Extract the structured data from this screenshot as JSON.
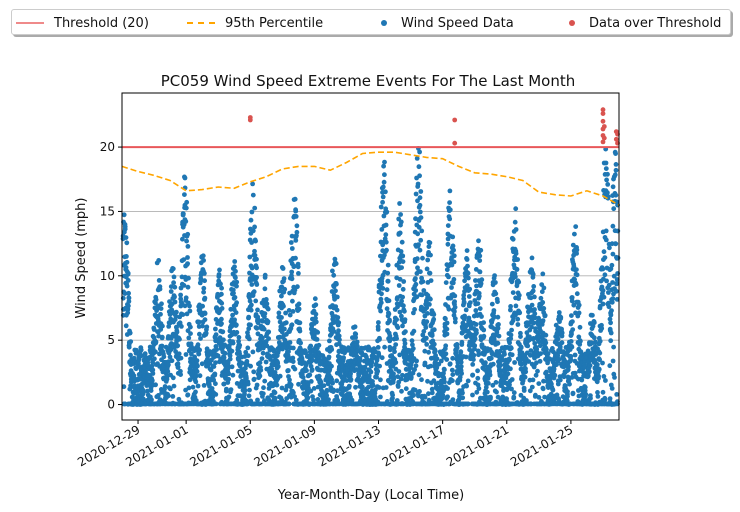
{
  "chart_data": {
    "type": "scatter",
    "title": "PC059 Wind Speed Extreme Events For The Last Month",
    "xlabel": "Year-Month-Day (Local Time)",
    "ylabel": "Wind Speed (mph)",
    "x_range": [
      "2020-12-28T00:00",
      "2021-01-28T00:00"
    ],
    "ylim": [
      -1.2,
      24.2
    ],
    "yticks": [
      0,
      5,
      10,
      15,
      20
    ],
    "xticks": [
      "2020-12-29",
      "2021-01-01",
      "2021-01-05",
      "2021-01-09",
      "2021-01-13",
      "2021-01-17",
      "2021-01-21",
      "2021-01-25"
    ],
    "grid": "horizontal",
    "legend_placement": "top",
    "threshold": 20,
    "series": [
      {
        "name": "Threshold (20)",
        "kind": "line",
        "color": "#e8575a"
      },
      {
        "name": "95th Percentile",
        "kind": "dashed-line",
        "color": "#ffa500",
        "x": [
          "2020-12-28",
          "2020-12-29",
          "2020-12-30",
          "2020-12-31",
          "2021-01-01",
          "2021-01-02",
          "2021-01-03",
          "2021-01-04",
          "2021-01-05",
          "2021-01-06",
          "2021-01-07",
          "2021-01-08",
          "2021-01-09",
          "2021-01-10",
          "2021-01-11",
          "2021-01-12",
          "2021-01-13",
          "2021-01-14",
          "2021-01-15",
          "2021-01-16",
          "2021-01-17",
          "2021-01-18",
          "2021-01-19",
          "2021-01-20",
          "2021-01-21",
          "2021-01-22",
          "2021-01-23",
          "2021-01-24",
          "2021-01-25",
          "2021-01-26",
          "2021-01-27",
          "2021-01-28"
        ],
        "y": [
          18.5,
          18.1,
          17.8,
          17.4,
          16.6,
          16.7,
          16.9,
          16.8,
          17.3,
          17.7,
          18.3,
          18.5,
          18.5,
          18.2,
          18.8,
          19.5,
          19.6,
          19.6,
          19.4,
          19.2,
          19.1,
          18.5,
          18.0,
          17.9,
          17.7,
          17.4,
          16.5,
          16.3,
          16.2,
          16.6,
          16.2,
          15.5
        ]
      },
      {
        "name": "Wind Speed Data",
        "kind": "scatter",
        "color": "#1f77b4",
        "bursts": [
          {
            "t": "2020-12-28T04:00",
            "peak": 14.5
          },
          {
            "t": "2020-12-29T12:00",
            "peak": 4.0
          },
          {
            "t": "2020-12-30T06:00",
            "peak": 11.0
          },
          {
            "t": "2020-12-31T04:00",
            "peak": 10.5
          },
          {
            "t": "2020-12-31T22:00",
            "peak": 17.0
          },
          {
            "t": "2021-01-02T00:00",
            "peak": 11.5
          },
          {
            "t": "2021-01-03T02:00",
            "peak": 10.0
          },
          {
            "t": "2021-01-04T00:00",
            "peak": 11.0
          },
          {
            "t": "2021-01-05T04:00",
            "peak": 16.5
          },
          {
            "t": "2021-01-05T22:00",
            "peak": 10.0
          },
          {
            "t": "2021-01-07T00:00",
            "peak": 10.5
          },
          {
            "t": "2021-01-07T18:00",
            "peak": 16.5
          },
          {
            "t": "2021-01-09T00:00",
            "peak": 8.5
          },
          {
            "t": "2021-01-10T06:00",
            "peak": 11.5
          },
          {
            "t": "2021-01-11T12:00",
            "peak": 6.0
          },
          {
            "t": "2021-01-13T08:00",
            "peak": 18.5
          },
          {
            "t": "2021-01-14T08:00",
            "peak": 15.0
          },
          {
            "t": "2021-01-15T12:00",
            "peak": 19.5
          },
          {
            "t": "2021-01-16T04:00",
            "peak": 12.5
          },
          {
            "t": "2021-01-17T12:00",
            "peak": 17.0
          },
          {
            "t": "2021-01-18T12:00",
            "peak": 11.5
          },
          {
            "t": "2021-01-19T06:00",
            "peak": 13.0
          },
          {
            "t": "2021-01-20T06:00",
            "peak": 10.0
          },
          {
            "t": "2021-01-21T12:00",
            "peak": 15.5
          },
          {
            "t": "2021-01-22T12:00",
            "peak": 12.0
          },
          {
            "t": "2021-01-23T04:00",
            "peak": 10.5
          },
          {
            "t": "2021-01-24T06:00",
            "peak": 7.5
          },
          {
            "t": "2021-01-25T06:00",
            "peak": 13.5
          },
          {
            "t": "2021-01-26T08:00",
            "peak": 7.0
          },
          {
            "t": "2021-01-27T04:00",
            "peak": 19.5
          },
          {
            "t": "2021-01-27T18:00",
            "peak": 19.0
          }
        ]
      },
      {
        "name": "Data over Threshold",
        "kind": "scatter",
        "color": "#d9534f",
        "points": [
          {
            "t": "2021-01-05T00:00",
            "y": 22.1
          },
          {
            "t": "2021-01-05T00:00",
            "y": 22.3
          },
          {
            "t": "2021-01-17T18:00",
            "y": 22.1
          },
          {
            "t": "2021-01-17T18:00",
            "y": 20.3
          },
          {
            "t": "2021-01-27T00:00",
            "y": 22.9
          },
          {
            "t": "2021-01-27T00:00",
            "y": 22.6
          },
          {
            "t": "2021-01-27T00:00",
            "y": 22.0
          },
          {
            "t": "2021-01-27T00:00",
            "y": 21.4
          },
          {
            "t": "2021-01-27T00:00",
            "y": 20.9
          },
          {
            "t": "2021-01-27T00:00",
            "y": 20.4
          },
          {
            "t": "2021-01-27T02:00",
            "y": 21.6
          },
          {
            "t": "2021-01-27T02:00",
            "y": 20.7
          },
          {
            "t": "2021-01-27T20:00",
            "y": 21.2
          },
          {
            "t": "2021-01-27T20:00",
            "y": 20.6
          },
          {
            "t": "2021-01-27T22:00",
            "y": 21.0
          },
          {
            "t": "2021-01-27T22:00",
            "y": 20.3
          }
        ]
      }
    ]
  }
}
